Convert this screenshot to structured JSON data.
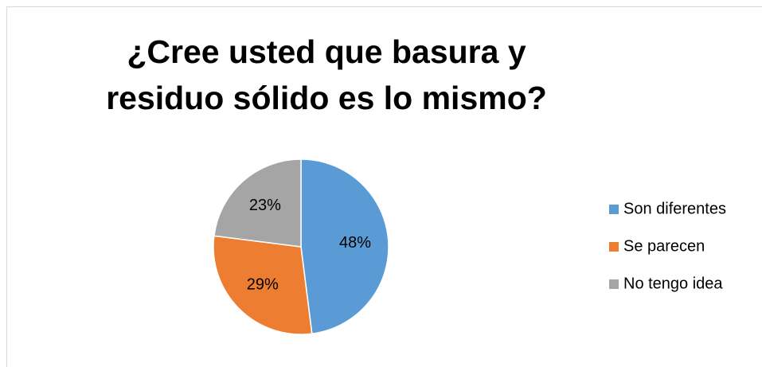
{
  "chart_data": {
    "type": "pie",
    "title": "¿Cree usted que basura y residuo sólido es lo mismo?",
    "categories": [
      "Son diferentes",
      "Se parecen",
      "No tengo idea"
    ],
    "values": [
      48,
      29,
      23
    ],
    "value_labels": [
      "48%",
      "29%",
      "23%"
    ],
    "colors": [
      "#5b9bd5",
      "#ed7d31",
      "#a5a5a5"
    ],
    "legend": "right"
  }
}
